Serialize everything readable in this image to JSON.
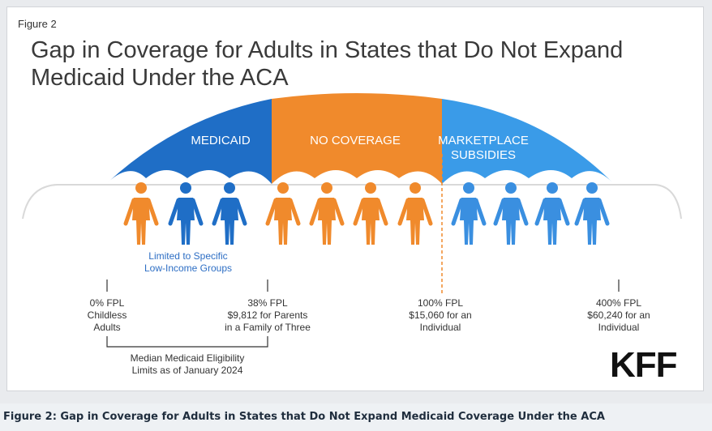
{
  "figure_label": "Figure 2",
  "title_line1": "Gap in Coverage for Adults in States that Do Not Expand",
  "title_line2": "Medicaid Under the ACA",
  "segments": {
    "medicaid": "MEDICAID",
    "no_coverage": "NO COVERAGE",
    "marketplace_line1": "MARKETPLACE",
    "marketplace_line2": "SUBSIDIES"
  },
  "note_line1": "Limited to Specific",
  "note_line2": "Low-Income Groups",
  "ticks": {
    "t0": [
      "0% FPL",
      "Childless",
      "Adults"
    ],
    "t38": [
      "38% FPL",
      "$9,812 for Parents",
      "in a Family of Three"
    ],
    "t100": [
      "100% FPL",
      "$15,060 for an",
      "Individual"
    ],
    "t400": [
      "400% FPL",
      "$60,240 for an",
      "Individual"
    ]
  },
  "bracket_line1": "Median Medicaid Eligibility",
  "bracket_line2": "Limits as of January 2024",
  "logo_text": "KFF",
  "caption": "Figure 2: Gap in Coverage for Adults in States that Do Not Expand Medicaid Coverage Under the ACA",
  "colors": {
    "medicaid": "#1f6ec6",
    "no_coverage": "#f08a2c",
    "marketplace": "#3a9be8",
    "person_orange": "#f08a2c",
    "person_blue": "#3a8fe0",
    "person_medicaid_blue": "#1f6ec6",
    "divider": "#f08a2c"
  },
  "people": [
    "orange",
    "blue-dark",
    "blue-dark",
    "orange",
    "orange",
    "orange",
    "orange",
    "blue",
    "blue",
    "blue",
    "blue"
  ]
}
